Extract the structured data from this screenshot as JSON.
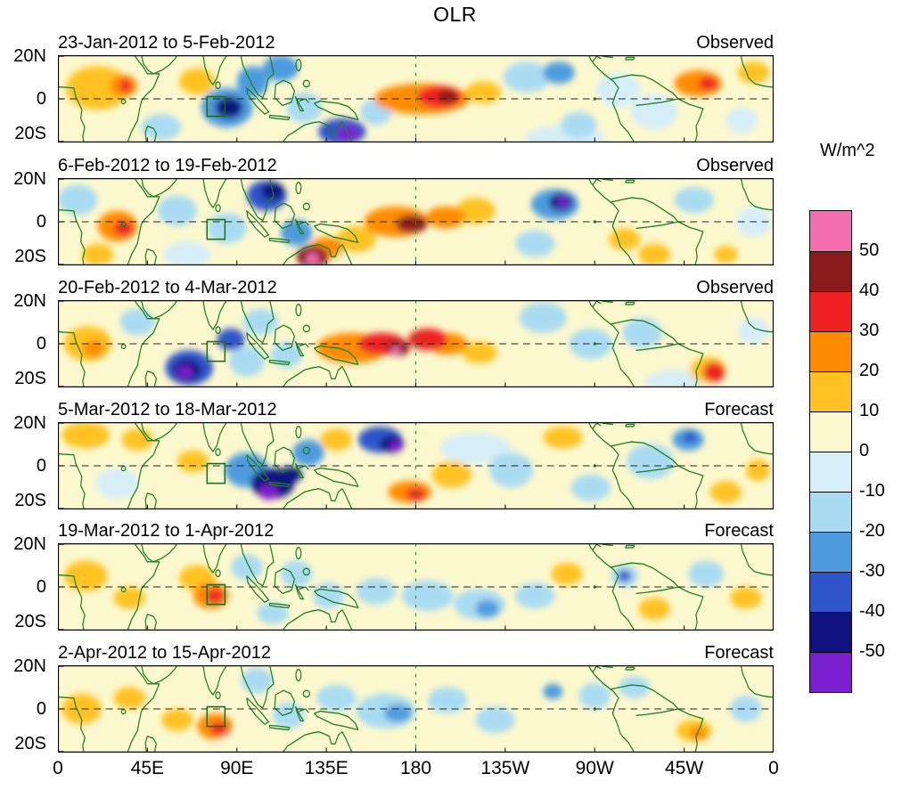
{
  "chart_data": {
    "type": "heatmap",
    "title": "OLR",
    "units_label": "W/m^2",
    "lon_range": [
      0,
      360
    ],
    "lat_range": [
      -20,
      20
    ],
    "x_tick_lons": [
      0,
      45,
      90,
      135,
      180,
      225,
      270,
      315,
      360
    ],
    "x_tick_labels": [
      "0",
      "45E",
      "90E",
      "135E",
      "180",
      "135W",
      "90W",
      "45W",
      "0"
    ],
    "y_tick_labels": [
      "20N",
      "0",
      "20S"
    ],
    "contour_levels": [
      -50,
      -40,
      -30,
      -20,
      -10,
      0,
      10,
      20,
      30,
      40,
      50
    ],
    "colors_by_level_ascending": [
      "#7A1FD0",
      "#10127F",
      "#2E55C9",
      "#4D9BDE",
      "#A9DBF2",
      "#D6EEF8",
      "#FDF9CE",
      "#FFC222",
      "#FF8C00",
      "#EE2020",
      "#8B1A1A",
      "#F46FB0"
    ],
    "colorbar_tick_labels": [
      "50",
      "40",
      "30",
      "20",
      "10",
      "0",
      "-10",
      "-20",
      "-30",
      "-40",
      "-50"
    ],
    "target_box": {
      "lon_min": 75,
      "lon_max": 84,
      "lat_min": -8,
      "lat_max": 1
    },
    "panels": [
      {
        "date_range": "23-Jan-2012 to 5-Feb-2012",
        "type_label": "Observed",
        "anomalies": [
          [
            20,
            5,
            15,
            16,
            10
          ],
          [
            33,
            6,
            26,
            7,
            5
          ],
          [
            34,
            6,
            34,
            3,
            3
          ],
          [
            52,
            -13,
            -16,
            10,
            6
          ],
          [
            70,
            8,
            12,
            9,
            6
          ],
          [
            85,
            -4,
            -28,
            13,
            9
          ],
          [
            86,
            -4,
            -42,
            7,
            5
          ],
          [
            98,
            8,
            -22,
            8,
            7
          ],
          [
            112,
            14,
            -24,
            9,
            6
          ],
          [
            124,
            -4,
            -18,
            9,
            7
          ],
          [
            143,
            -15,
            -40,
            12,
            6
          ],
          [
            146,
            -16,
            -54,
            6,
            3.5
          ],
          [
            160,
            -6,
            -16,
            8,
            6
          ],
          [
            183,
            0,
            22,
            24,
            7
          ],
          [
            192,
            1,
            36,
            11,
            5
          ],
          [
            196,
            1,
            46,
            5,
            3
          ],
          [
            214,
            3,
            18,
            9,
            5
          ],
          [
            236,
            10,
            -18,
            12,
            7
          ],
          [
            252,
            12,
            -26,
            8,
            5
          ],
          [
            262,
            -12,
            -14,
            9,
            6
          ],
          [
            282,
            4,
            -10,
            11,
            8
          ],
          [
            300,
            -6,
            -10,
            12,
            8
          ],
          [
            322,
            7,
            20,
            12,
            6
          ],
          [
            327,
            7,
            30,
            5,
            3
          ],
          [
            350,
            12,
            16,
            8,
            5
          ],
          [
            344,
            -10,
            -10,
            8,
            6
          ],
          [
            255,
            -18,
            -8,
            20,
            6
          ]
        ]
      },
      {
        "date_range": "6-Feb-2012 to 19-Feb-2012",
        "type_label": "Observed",
        "anomalies": [
          [
            10,
            10,
            -16,
            10,
            7
          ],
          [
            20,
            -15,
            14,
            8,
            5
          ],
          [
            30,
            -2,
            24,
            10,
            7
          ],
          [
            33,
            -3,
            34,
            5,
            3.5
          ],
          [
            60,
            5,
            -14,
            10,
            7
          ],
          [
            65,
            -15,
            -10,
            12,
            6
          ],
          [
            85,
            -3,
            -18,
            10,
            7
          ],
          [
            105,
            12,
            -32,
            10,
            7
          ],
          [
            108,
            14,
            -44,
            6,
            4
          ],
          [
            120,
            -5,
            -22,
            8,
            6
          ],
          [
            128,
            -16,
            40,
            8,
            5
          ],
          [
            128,
            -17,
            54,
            3.5,
            2.5
          ],
          [
            135,
            -12,
            28,
            8,
            5
          ],
          [
            150,
            -8,
            18,
            10,
            6
          ],
          [
            170,
            0,
            28,
            16,
            7
          ],
          [
            178,
            -1,
            40,
            8,
            4
          ],
          [
            176,
            0,
            48,
            4,
            2.5
          ],
          [
            195,
            2,
            28,
            10,
            5
          ],
          [
            210,
            5,
            14,
            10,
            6
          ],
          [
            250,
            8,
            -28,
            12,
            7
          ],
          [
            253,
            9,
            -44,
            6,
            4
          ],
          [
            254,
            9,
            -54,
            3,
            2.2
          ],
          [
            240,
            -10,
            -14,
            10,
            6
          ],
          [
            285,
            -8,
            14,
            8,
            5
          ],
          [
            300,
            -15,
            12,
            8,
            5
          ],
          [
            320,
            10,
            -18,
            10,
            6
          ],
          [
            336,
            -15,
            16,
            6,
            4
          ],
          [
            350,
            0,
            -10,
            9,
            7
          ]
        ]
      },
      {
        "date_range": "20-Feb-2012 to 4-Mar-2012",
        "type_label": "Observed",
        "anomalies": [
          [
            15,
            0,
            18,
            12,
            8
          ],
          [
            18,
            -2,
            26,
            5,
            4
          ],
          [
            40,
            10,
            -12,
            9,
            6
          ],
          [
            66,
            -11,
            -32,
            12,
            8
          ],
          [
            65,
            -12,
            -46,
            7,
            5
          ],
          [
            64,
            -13,
            -54,
            4,
            2.8
          ],
          [
            87,
            2,
            -36,
            7,
            5
          ],
          [
            95,
            -8,
            -20,
            9,
            7
          ],
          [
            102,
            10,
            -18,
            9,
            6
          ],
          [
            115,
            -5,
            -14,
            8,
            6
          ],
          [
            148,
            -2,
            22,
            18,
            7
          ],
          [
            163,
            0,
            34,
            12,
            5
          ],
          [
            171,
            -2,
            44,
            6,
            3.5
          ],
          [
            170,
            -3,
            54,
            2.5,
            1.8
          ],
          [
            186,
            2,
            32,
            10,
            5
          ],
          [
            196,
            0,
            24,
            10,
            5
          ],
          [
            212,
            -4,
            14,
            9,
            5
          ],
          [
            244,
            12,
            -20,
            12,
            7
          ],
          [
            268,
            0,
            -14,
            11,
            7
          ],
          [
            294,
            5,
            -11,
            10,
            7
          ],
          [
            327,
            -12,
            18,
            9,
            6
          ],
          [
            330,
            -13,
            30,
            5.5,
            4.5
          ],
          [
            331,
            -14,
            38,
            3,
            2.2
          ],
          [
            350,
            6,
            -10,
            8,
            6
          ],
          [
            310,
            -17,
            -8,
            15,
            5
          ]
        ]
      },
      {
        "date_range": "5-Mar-2012 to 18-Mar-2012",
        "type_label": "Forecast",
        "anomalies": [
          [
            14,
            14,
            14,
            12,
            6
          ],
          [
            40,
            12,
            14,
            8,
            5
          ],
          [
            30,
            -8,
            -10,
            11,
            7
          ],
          [
            68,
            2,
            14,
            8,
            5
          ],
          [
            95,
            -2,
            -26,
            11,
            8
          ],
          [
            108,
            -8,
            -42,
            11,
            7
          ],
          [
            106,
            -12,
            -54,
            5,
            3.5
          ],
          [
            117,
            -4,
            -50,
            6,
            3.5
          ],
          [
            126,
            6,
            -28,
            8,
            6
          ],
          [
            140,
            12,
            12,
            8,
            5
          ],
          [
            162,
            12,
            -32,
            11,
            6
          ],
          [
            168,
            10,
            -46,
            6,
            4
          ],
          [
            170,
            9,
            -54,
            3,
            2.2
          ],
          [
            177,
            -12,
            22,
            11,
            5
          ],
          [
            180,
            -13,
            32,
            5,
            3
          ],
          [
            198,
            -4,
            14,
            10,
            6
          ],
          [
            210,
            8,
            -9,
            18,
            7
          ],
          [
            228,
            -2,
            -14,
            11,
            8
          ],
          [
            254,
            13,
            14,
            10,
            5
          ],
          [
            268,
            -10,
            -11,
            10,
            6
          ],
          [
            298,
            2,
            -11,
            12,
            8
          ],
          [
            317,
            12,
            -28,
            8,
            5
          ],
          [
            318,
            13,
            -38,
            3.5,
            2.5
          ],
          [
            336,
            -12,
            14,
            8,
            5
          ],
          [
            352,
            -2,
            11,
            6,
            5
          ]
        ]
      },
      {
        "date_range": "19-Mar-2012 to 1-Apr-2012",
        "type_label": "Forecast",
        "anomalies": [
          [
            14,
            5,
            12,
            11,
            7
          ],
          [
            36,
            -5,
            13,
            8,
            5
          ],
          [
            70,
            4,
            16,
            9,
            6
          ],
          [
            77,
            -4,
            26,
            9,
            6
          ],
          [
            79,
            -4,
            36,
            4.5,
            3.2
          ],
          [
            95,
            9,
            -18,
            8,
            6
          ],
          [
            108,
            -12,
            -16,
            8,
            5
          ],
          [
            120,
            6,
            -14,
            8,
            6
          ],
          [
            136,
            -4,
            -11,
            8,
            6
          ],
          [
            160,
            -2,
            -11,
            10,
            6
          ],
          [
            175,
            12,
            9,
            20,
            6
          ],
          [
            186,
            -4,
            -13,
            13,
            7
          ],
          [
            212,
            -8,
            -18,
            13,
            7
          ],
          [
            216,
            -10,
            -26,
            6,
            4
          ],
          [
            240,
            -4,
            -13,
            10,
            6
          ],
          [
            256,
            6,
            11,
            8,
            5
          ],
          [
            285,
            5,
            -18,
            7,
            5
          ],
          [
            285,
            5,
            -34,
            3.5,
            2.6
          ],
          [
            300,
            -10,
            11,
            8,
            5
          ],
          [
            326,
            6,
            -14,
            9,
            6
          ],
          [
            346,
            -5,
            11,
            8,
            5
          ]
        ]
      },
      {
        "date_range": "2-Apr-2012 to 15-Apr-2012",
        "type_label": "Forecast",
        "anomalies": [
          [
            12,
            0,
            11,
            10,
            7
          ],
          [
            36,
            5,
            13,
            8,
            5
          ],
          [
            60,
            -5,
            12,
            8,
            5
          ],
          [
            79,
            -8,
            22,
            9,
            6
          ],
          [
            81,
            -9,
            31,
            4.5,
            3
          ],
          [
            95,
            -15,
            9,
            15,
            5
          ],
          [
            100,
            13,
            -13,
            8,
            6
          ],
          [
            116,
            -3,
            -11,
            8,
            6
          ],
          [
            140,
            5,
            -14,
            10,
            6
          ],
          [
            165,
            -1,
            -17,
            15,
            8
          ],
          [
            171,
            -2,
            -26,
            7,
            4
          ],
          [
            196,
            4,
            -13,
            10,
            6
          ],
          [
            220,
            -5,
            -11,
            10,
            6
          ],
          [
            249,
            8,
            -24,
            5,
            3.5
          ],
          [
            270,
            6,
            -13,
            8,
            6
          ],
          [
            290,
            10,
            -16,
            8,
            5
          ],
          [
            320,
            -10,
            18,
            9,
            5
          ],
          [
            322,
            -11,
            28,
            4.5,
            3
          ],
          [
            346,
            0,
            -11,
            8,
            6
          ]
        ]
      }
    ]
  }
}
